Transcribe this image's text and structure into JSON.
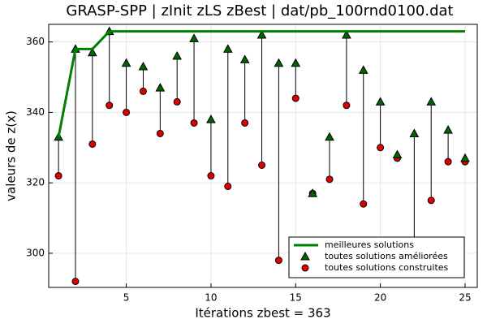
{
  "chart_data": {
    "type": "line",
    "title": "GRASP-SPP | zInit zLS zBest | dat/pb_100rnd0100.dat",
    "x_label": "Itérations  zbest = 363",
    "y_label": "valeurs de z(x)",
    "x": [
      1,
      2,
      3,
      4,
      5,
      6,
      7,
      8,
      9,
      10,
      11,
      12,
      13,
      14,
      15,
      16,
      17,
      18,
      19,
      20,
      21,
      22,
      23,
      24,
      25
    ],
    "series": [
      {
        "name": "meilleures solutions",
        "color": "#008000",
        "style": "line",
        "values": [
          333,
          358,
          358,
          363,
          363,
          363,
          363,
          363,
          363,
          363,
          363,
          363,
          363,
          363,
          363,
          363,
          363,
          363,
          363,
          363,
          363,
          363,
          363,
          363,
          363
        ]
      },
      {
        "name": "toutes solutions améliorées",
        "color": "#006400",
        "style": "triangle",
        "values": [
          333,
          358,
          357,
          363,
          354,
          353,
          347,
          356,
          361,
          338,
          358,
          355,
          362,
          354,
          354,
          317,
          333,
          362,
          352,
          343,
          328,
          334,
          343,
          335,
          327
        ]
      },
      {
        "name": "toutes solutions construites",
        "color": "#e00000",
        "style": "circle",
        "values": [
          322,
          292,
          331,
          342,
          340,
          346,
          334,
          343,
          337,
          322,
          319,
          337,
          325,
          298,
          344,
          317,
          321,
          342,
          314,
          330,
          327,
          296,
          315,
          326,
          326
        ]
      }
    ],
    "stems": true,
    "xlim": [
      0.42,
      25.72
    ],
    "xticks": [
      5,
      10,
      15,
      20,
      25
    ],
    "ylim": [
      290.3,
      365
    ],
    "yticks": [
      300,
      320,
      340,
      360
    ],
    "grid": true,
    "legend": "bottom-right"
  }
}
